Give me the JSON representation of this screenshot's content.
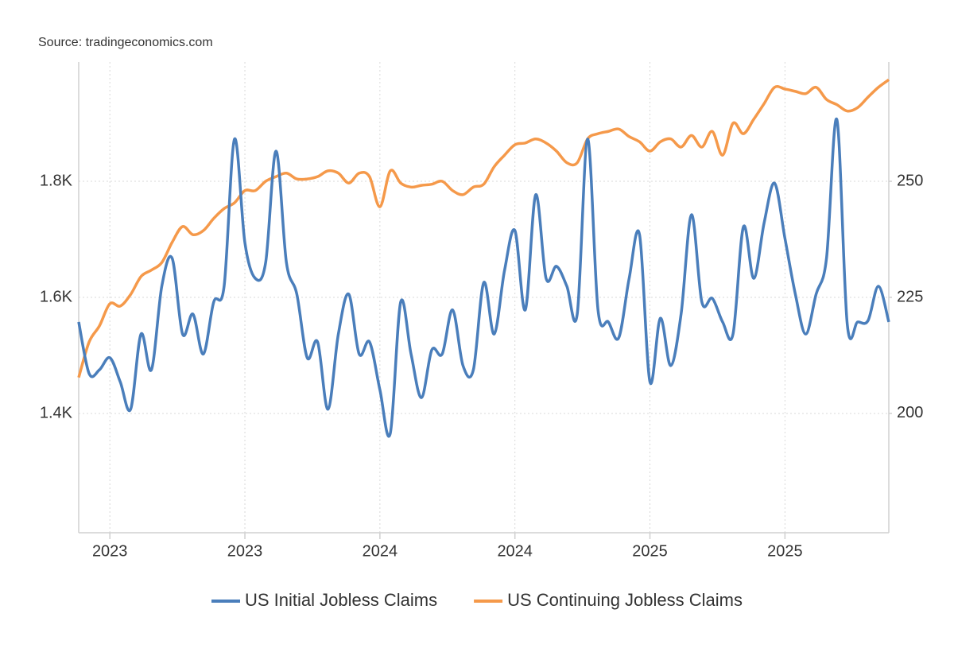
{
  "chart_data": {
    "type": "line",
    "source": "Source: tradingeconomics.com",
    "categories": [
      null,
      null,
      null,
      "2023",
      null,
      null,
      null,
      null,
      null,
      null,
      null,
      null,
      null,
      null,
      null,
      null,
      "2023",
      null,
      null,
      null,
      null,
      null,
      null,
      null,
      null,
      null,
      null,
      null,
      null,
      "2024",
      null,
      null,
      null,
      null,
      null,
      null,
      null,
      null,
      null,
      null,
      null,
      null,
      "2024",
      null,
      null,
      null,
      null,
      null,
      null,
      null,
      null,
      null,
      null,
      null,
      null,
      "2025",
      null,
      null,
      null,
      null,
      null,
      null,
      null,
      null,
      null,
      null,
      null,
      null,
      "2025",
      null,
      null,
      null,
      null,
      null,
      null,
      null,
      null,
      null,
      null
    ],
    "series": [
      {
        "name": "US Initial Jobless Claims",
        "color": "#4a7ebb",
        "axis": "y2",
        "values": [
          219.7,
          208.6,
          209.4,
          212.0,
          206.8,
          200.9,
          217.1,
          209.4,
          227.4,
          233.4,
          217.1,
          221.4,
          212.8,
          224.0,
          227.4,
          259.1,
          236.8,
          229.1,
          232.5,
          256.5,
          232.5,
          225.7,
          212.0,
          215.4,
          200.9,
          217.1,
          225.7,
          212.8,
          215.4,
          205.1,
          195.7,
          224.0,
          212.8,
          203.4,
          213.7,
          212.8,
          222.3,
          210.3,
          209.4,
          228.2,
          217.1,
          230.8,
          239.4,
          222.3,
          247.1,
          229.1,
          231.7,
          227.4,
          221.4,
          259.1,
          222.3,
          219.7,
          216.3,
          229.1,
          238.5,
          206.8,
          220.5,
          210.3,
          221.4,
          242.8,
          224.0,
          224.8,
          219.7,
          217.1,
          240.2,
          229.1,
          241.1,
          249.6,
          237.7,
          225.7,
          217.1,
          225.7,
          233.4,
          263.3,
          219.2,
          219.7,
          220.0,
          227.4,
          219.7
        ]
      },
      {
        "name": "US Continuing Jobless Claims",
        "color": "#f5994a",
        "axis": "y",
        "values": [
          1.462,
          1.523,
          1.551,
          1.589,
          1.585,
          1.605,
          1.636,
          1.647,
          1.66,
          1.695,
          1.722,
          1.708,
          1.715,
          1.736,
          1.753,
          1.763,
          1.784,
          1.784,
          1.8,
          1.808,
          1.814,
          1.804,
          1.804,
          1.808,
          1.818,
          1.814,
          1.797,
          1.814,
          1.808,
          1.756,
          1.818,
          1.797,
          1.79,
          1.793,
          1.795,
          1.8,
          1.784,
          1.777,
          1.79,
          1.795,
          1.825,
          1.845,
          1.863,
          1.866,
          1.873,
          1.866,
          1.852,
          1.832,
          1.832,
          1.873,
          1.882,
          1.886,
          1.89,
          1.877,
          1.868,
          1.852,
          1.868,
          1.873,
          1.859,
          1.879,
          1.859,
          1.886,
          1.845,
          1.9,
          1.882,
          1.907,
          1.934,
          1.962,
          1.959,
          1.955,
          1.951,
          1.962,
          1.941,
          1.932,
          1.921,
          1.927,
          1.945,
          1.962,
          1.975
        ]
      }
    ],
    "ylim": [
      1.1945,
      2.0055
    ],
    "yticks": [
      {
        "value": 1.4,
        "label": "1.4K"
      },
      {
        "value": 1.6,
        "label": "1.6K"
      },
      {
        "value": 1.8,
        "label": "1.8K"
      }
    ],
    "y2lim": [
      174.3,
      275.7
    ],
    "y2ticks": [
      200,
      225,
      250
    ],
    "grid": true
  }
}
